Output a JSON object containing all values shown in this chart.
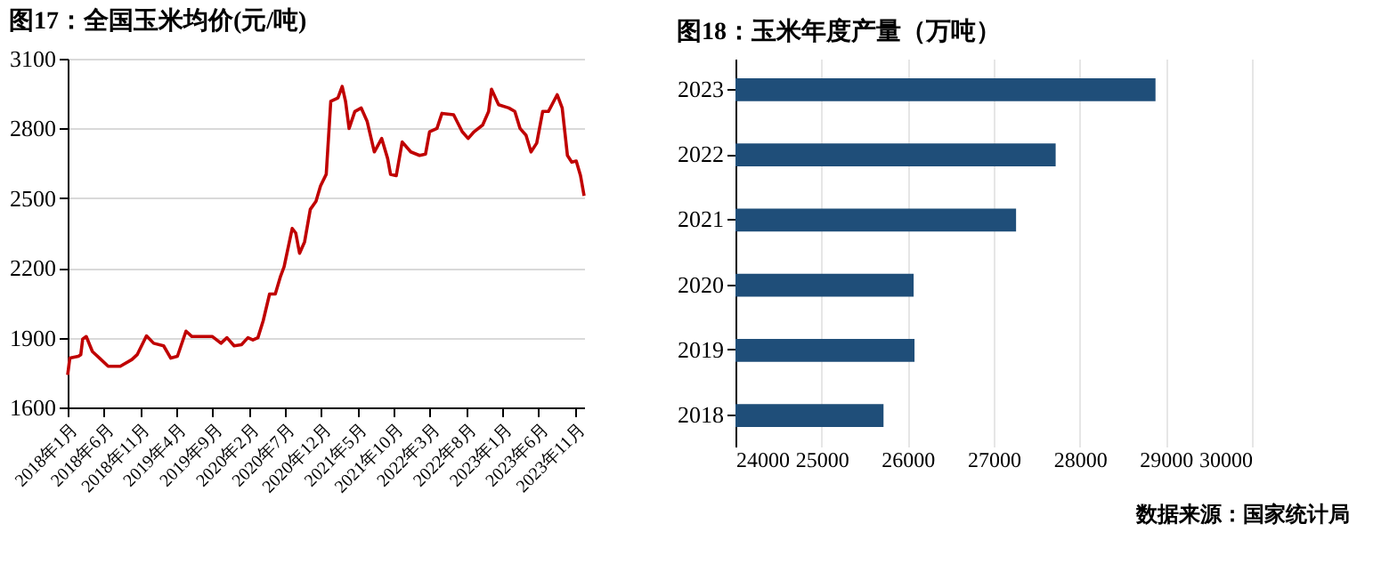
{
  "chart_data": [
    {
      "type": "line",
      "title": "图17：全国玉米均价(元/吨)",
      "x": [
        "2018-01-01",
        "2018-01-10",
        "2018-02-15",
        "2018-02-25",
        "2018-03-05",
        "2018-03-20",
        "2018-04-15",
        "2018-05-15",
        "2018-06-20",
        "2018-08-10",
        "2018-09-28",
        "2018-10-20",
        "2018-11-28",
        "2018-12-28",
        "2019-02-08",
        "2019-03-10",
        "2019-04-07",
        "2019-05-13",
        "2019-06-07",
        "2019-09-01",
        "2019-10-07",
        "2019-11-01",
        "2019-12-01",
        "2020-01-01",
        "2020-01-28",
        "2020-02-18",
        "2020-03-10",
        "2020-04-01",
        "2020-04-28",
        "2020-05-22",
        "2020-06-12",
        "2020-06-28",
        "2020-08-01",
        "2020-08-16",
        "2020-09-01",
        "2020-09-22",
        "2020-10-16",
        "2020-11-09",
        "2020-11-28",
        "2020-12-22",
        "2021-01-10",
        "2021-02-09",
        "2021-02-27",
        "2021-03-13",
        "2021-03-28",
        "2021-04-21",
        "2021-05-18",
        "2021-06-12",
        "2021-07-12",
        "2021-08-12",
        "2021-09-06",
        "2021-09-18",
        "2021-10-12",
        "2021-11-06",
        "2021-12-12",
        "2022-01-18",
        "2022-02-12",
        "2022-03-01",
        "2022-04-01",
        "2022-04-22",
        "2022-06-10",
        "2022-07-16",
        "2022-08-10",
        "2022-09-04",
        "2022-10-10",
        "2022-11-04",
        "2022-11-16",
        "2022-12-16",
        "2023-01-28",
        "2023-02-22",
        "2023-03-16",
        "2023-04-10",
        "2023-05-01",
        "2023-05-25",
        "2023-06-19",
        "2023-07-13",
        "2023-08-19",
        "2023-09-09",
        "2023-10-01",
        "2023-10-19",
        "2023-11-07",
        "2023-11-25",
        "2023-12-10"
      ],
      "series": [
        {
          "color": "#c00000",
          "values": [
            1740,
            1812,
            1820,
            1827,
            1894,
            1905,
            1840,
            1812,
            1777,
            1777,
            1806,
            1827,
            1908,
            1876,
            1865,
            1812,
            1820,
            1928,
            1905,
            1905,
            1876,
            1900,
            1865,
            1870,
            1900,
            1890,
            1900,
            1972,
            2088,
            2088,
            2161,
            2205,
            2370,
            2350,
            2263,
            2312,
            2452,
            2487,
            2553,
            2603,
            2917,
            2931,
            2981,
            2917,
            2800,
            2873,
            2888,
            2830,
            2699,
            2757,
            2670,
            2603,
            2597,
            2742,
            2699,
            2684,
            2690,
            2786,
            2800,
            2865,
            2859,
            2786,
            2757,
            2786,
            2815,
            2873,
            2969,
            2902,
            2888,
            2873,
            2800,
            2771,
            2699,
            2737,
            2873,
            2873,
            2945,
            2888,
            2684,
            2655,
            2660,
            2597,
            2510
          ]
        }
      ],
      "xlim": [
        "2018-01-01",
        "2023-12-10"
      ],
      "xticks": [
        {
          "value": "2018-01",
          "label": "2018年1月"
        },
        {
          "value": "2018-06",
          "label": "2018年6月"
        },
        {
          "value": "2018-11",
          "label": "2018年11月"
        },
        {
          "value": "2019-04",
          "label": "2019年4月"
        },
        {
          "value": "2019-09",
          "label": "2019年9月"
        },
        {
          "value": "2020-02",
          "label": "2020年2月"
        },
        {
          "value": "2020-07",
          "label": "2020年7月"
        },
        {
          "value": "2020-12",
          "label": "2020年12月"
        },
        {
          "value": "2021-05",
          "label": "2021年5月"
        },
        {
          "value": "2021-10",
          "label": "2021年10月"
        },
        {
          "value": "2022-03",
          "label": "2022年3月"
        },
        {
          "value": "2022-08",
          "label": "2022年8月"
        },
        {
          "value": "2023-01",
          "label": "2023年1月"
        },
        {
          "value": "2023-06",
          "label": "2023年6月"
        },
        {
          "value": "2023-11",
          "label": "2023年11月"
        }
      ],
      "ylim": [
        1600,
        3100
      ],
      "yticks": [
        1600,
        1900,
        2200,
        2500,
        2800,
        3100
      ],
      "grid": "y",
      "legend": false
    },
    {
      "type": "bar",
      "orientation": "horizontal",
      "title": "图18：玉米年度产量（万吨）",
      "categories": [
        "2023",
        "2022",
        "2021",
        "2020",
        "2019",
        "2018"
      ],
      "series": [
        {
          "color": "#1f4e79",
          "values": [
            28880,
            27720,
            27260,
            26070,
            26080,
            25720
          ]
        }
      ],
      "xlim": [
        24000,
        30000
      ],
      "xticks": [
        24000,
        25000,
        26000,
        27000,
        28000,
        29000,
        30000
      ],
      "grid": "x",
      "legend": false,
      "annotations": [
        "数据来源：国家统计局"
      ]
    }
  ]
}
